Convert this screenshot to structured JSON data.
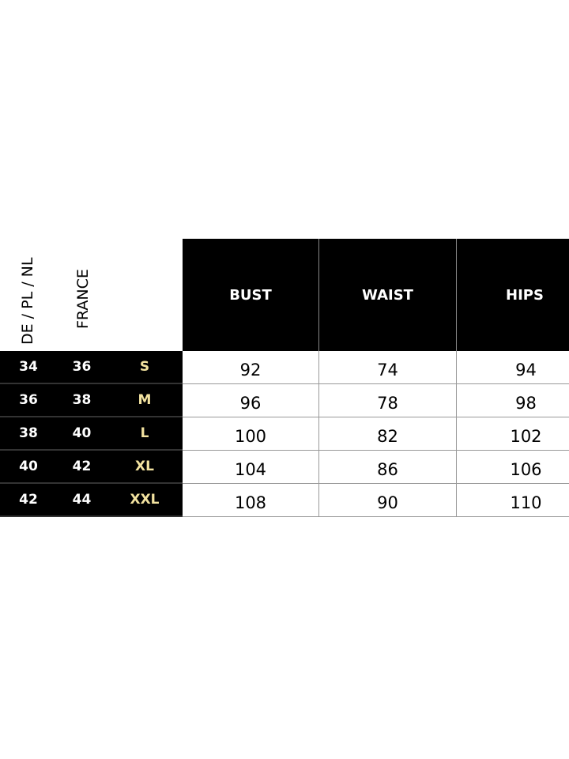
{
  "headers": {
    "de_pl_nl": "DE / PL / NL",
    "france": "FRANCE",
    "bust": "BUST",
    "waist": "WAIST",
    "hips": "HIPS"
  },
  "rows": [
    {
      "de": "34",
      "fr": "36",
      "size": "S",
      "bust": "92",
      "waist": "74",
      "hips": "94"
    },
    {
      "de": "36",
      "fr": "38",
      "size": "M",
      "bust": "96",
      "waist": "78",
      "hips": "98"
    },
    {
      "de": "38",
      "fr": "40",
      "size": "L",
      "bust": "100",
      "waist": "82",
      "hips": "102"
    },
    {
      "de": "40",
      "fr": "42",
      "size": "XL",
      "bust": "104",
      "waist": "86",
      "hips": "106"
    },
    {
      "de": "42",
      "fr": "44",
      "size": "XXL",
      "bust": "108",
      "waist": "90",
      "hips": "110"
    }
  ],
  "colors": {
    "header_bg": "#000000",
    "size_label": "#f3e3a0"
  }
}
